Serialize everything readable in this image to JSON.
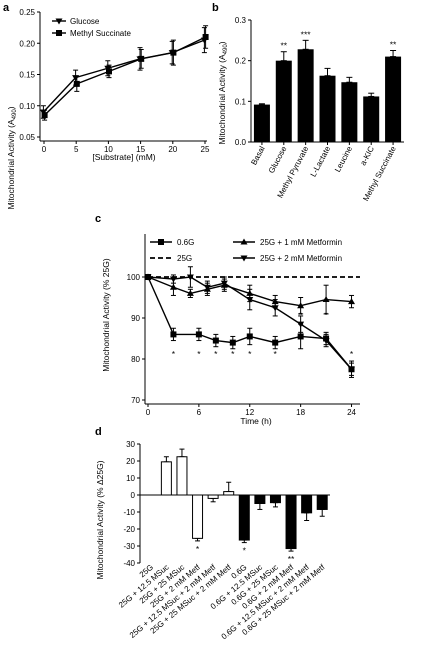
{
  "chart_data": [
    {
      "panel": "a",
      "type": "line",
      "xlabel": "[Substrate] (mM)",
      "ylabel": "Mitochondrial Activity (A490)",
      "ylabel_main": "Mitochondrial Activity (A",
      "ylabel_sub": "490",
      "ylabel_close": ")",
      "xlim": [
        0,
        25
      ],
      "ylim": [
        0.05,
        0.25
      ],
      "xticks": [
        0,
        5,
        10,
        15,
        20,
        25
      ],
      "yticks": [
        0.05,
        0.1,
        0.15,
        0.2,
        0.25
      ],
      "ytick_labels": [
        "0.05",
        "0.10",
        "0.15",
        "0.20",
        "0.25"
      ],
      "legend_position": "top-left",
      "series": [
        {
          "name": "Glucose",
          "marker": "triangle-down",
          "x": [
            0,
            5,
            10,
            15,
            20,
            25
          ],
          "y": [
            0.09,
            0.145,
            0.16,
            0.175,
            0.185,
            0.205
          ],
          "err": [
            0.01,
            0.012,
            0.012,
            0.018,
            0.018,
            0.02
          ]
        },
        {
          "name": "Methyl Succinate",
          "marker": "square",
          "x": [
            0,
            5,
            10,
            15,
            20,
            25
          ],
          "y": [
            0.085,
            0.135,
            0.155,
            0.175,
            0.185,
            0.21
          ],
          "err": [
            0.008,
            0.012,
            0.01,
            0.015,
            0.02,
            0.018
          ]
        }
      ]
    },
    {
      "panel": "b",
      "type": "bar",
      "ylabel": "Mitochondrial Activity (A490)",
      "ylabel_main": "Mitochondrial Activity (A",
      "ylabel_sub": "490",
      "ylabel_close": ")",
      "ylim": [
        0,
        0.3
      ],
      "yticks": [
        0.0,
        0.1,
        0.2,
        0.3
      ],
      "ytick_labels": [
        "0.0",
        "0.1",
        "0.2",
        "0.3"
      ],
      "categories": [
        "Basal",
        "Glucose",
        "Methyl Pyruvate",
        "L-Lactate",
        "Leucine",
        "a-KIC",
        "Methyl Succinate"
      ],
      "values": [
        0.092,
        0.2,
        0.228,
        0.163,
        0.147,
        0.112,
        0.21
      ],
      "err": [
        0.002,
        0.022,
        0.022,
        0.018,
        0.012,
        0.008,
        0.015
      ],
      "significance": [
        "",
        "**",
        "***",
        "",
        "",
        "",
        "**"
      ]
    },
    {
      "panel": "c",
      "type": "line",
      "xlabel": "Time (h)",
      "ylabel": "Mitochondrial Activity (% 25G)",
      "xlim": [
        0,
        25
      ],
      "ylim": [
        70,
        110
      ],
      "xticks": [
        0,
        6,
        12,
        18,
        24
      ],
      "yticks": [
        70,
        80,
        90,
        100,
        110
      ],
      "legend_position": "top",
      "series": [
        {
          "name": "0.6G",
          "marker": "square",
          "x": [
            0,
            3,
            6,
            8,
            10,
            12,
            15,
            18,
            21,
            24
          ],
          "y": [
            100,
            86,
            86,
            84.5,
            84,
            85.5,
            84,
            85.5,
            85,
            77.5
          ],
          "err": [
            0,
            1.5,
            1.5,
            1.5,
            1.5,
            2,
            1.5,
            3,
            1.5,
            1.5
          ]
        },
        {
          "name": "25G",
          "style": "dashed",
          "x": [
            0,
            25
          ],
          "y": [
            100,
            100
          ]
        },
        {
          "name": "25G + 1 mM Metformin",
          "marker": "triangle-up",
          "x": [
            0,
            3,
            5,
            7,
            9,
            12,
            15,
            18,
            21,
            24
          ],
          "y": [
            100,
            97.5,
            96,
            97,
            98,
            96,
            94,
            93,
            94.5,
            94
          ],
          "err": [
            0,
            2,
            1,
            1.5,
            1.5,
            2,
            1.5,
            2,
            3.5,
            1.5
          ]
        },
        {
          "name": "25G + 2 mM Metformin",
          "marker": "triangle-down",
          "x": [
            0,
            3,
            5,
            7,
            9,
            12,
            15,
            18,
            21,
            24
          ],
          "y": [
            100,
            99.5,
            100,
            97.5,
            98.5,
            94.5,
            92.5,
            88.5,
            84.5,
            77.5
          ],
          "err": [
            0,
            1,
            2.5,
            1.5,
            1.5,
            2.5,
            2,
            2,
            1.5,
            2
          ]
        }
      ],
      "significance_marks": [
        {
          "x": 3,
          "label": "*"
        },
        {
          "x": 6,
          "label": "*"
        },
        {
          "x": 8,
          "label": "*"
        },
        {
          "x": 10,
          "label": "*"
        },
        {
          "x": 12,
          "label": "*"
        },
        {
          "x": 15,
          "label": "*"
        },
        {
          "x": 18,
          "label": "*"
        },
        {
          "x": 21,
          "label": "*"
        },
        {
          "x": 24,
          "label": "*"
        }
      ]
    },
    {
      "panel": "d",
      "type": "bar",
      "ylabel": "Mitochondrial Activity (% Δ25G)",
      "ylim": [
        -40,
        30
      ],
      "yticks": [
        -40,
        -30,
        -20,
        -10,
        0,
        10,
        20,
        30
      ],
      "categories": [
        "25G",
        "25G + 12.5 MSuc",
        "25G + 25 MSuc",
        "25G + 2 mM Metf",
        "25G + 12.5 MSuc + 2 mM Metf",
        "25G + 25 MSuc + 2 mM Metf",
        "0.6G",
        "0.6G + 12.5 MSuc",
        "0.6G + 25 MSuc",
        "0.6G + 2 mM Metf",
        "0.6G + 12.5 MSuc + 2 mM Metf",
        "0.6G + 25 MSuc + 2 mM Metf"
      ],
      "values": [
        0,
        19.5,
        22.5,
        -25.5,
        -2,
        2,
        -26.5,
        -5,
        -4.5,
        -31.5,
        -10.5,
        -8.5
      ],
      "err": [
        0,
        3,
        4.5,
        1.5,
        2,
        5.5,
        1.5,
        3.5,
        2.5,
        1.5,
        4.5,
        4
      ],
      "fill": [
        "white",
        "white",
        "white",
        "white",
        "white",
        "white",
        "black",
        "black",
        "black",
        "black",
        "black",
        "black"
      ],
      "significance": [
        "",
        "",
        "",
        "*",
        "",
        "",
        "*",
        "",
        "",
        "**",
        "",
        ""
      ]
    }
  ],
  "panel_letters": {
    "a": "a",
    "b": "b",
    "c": "c",
    "d": "d"
  },
  "colors": {
    "ink": "#000000",
    "open_fill": "#ffffff"
  }
}
